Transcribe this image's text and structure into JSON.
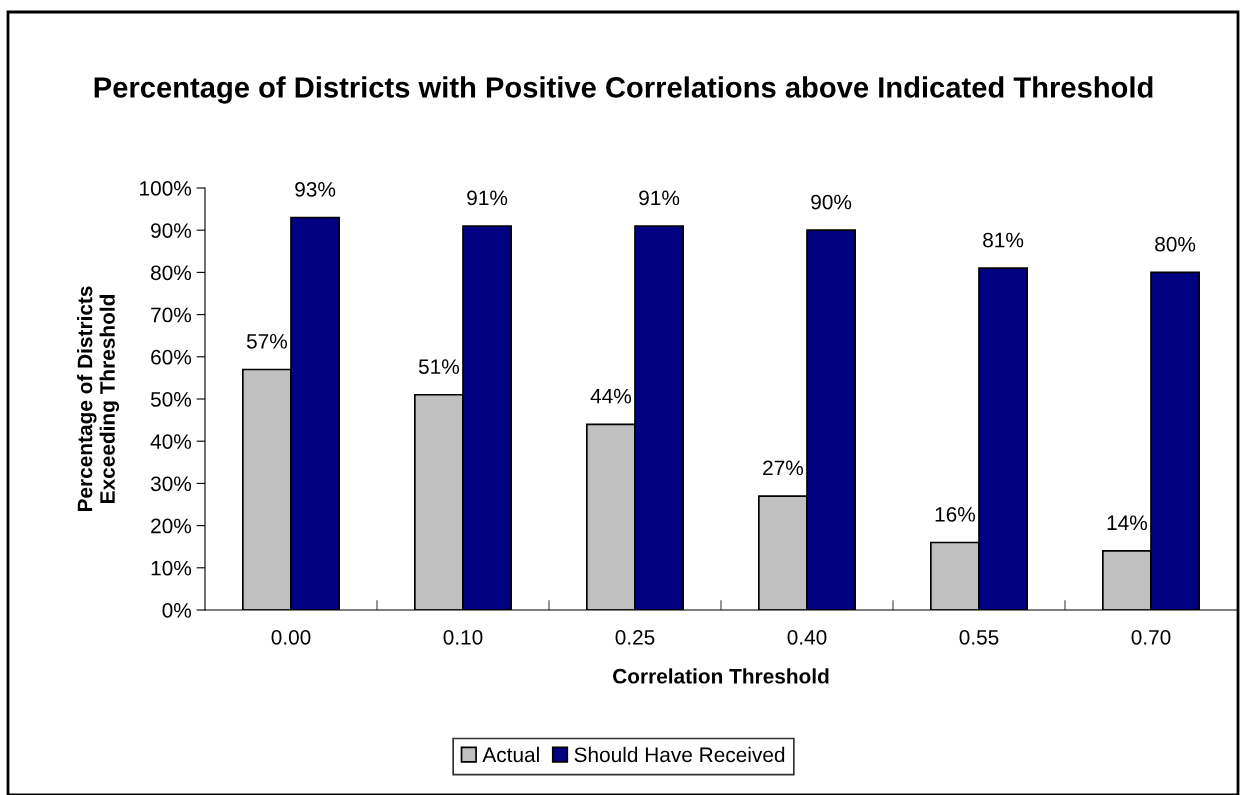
{
  "chart_data": {
    "type": "bar",
    "title": "Percentage of Districts with Positive Correlations above Indicated Threshold",
    "xlabel": "Correlation Threshold",
    "ylabel": "Percentage of Districts\nExceeding Threshold",
    "categories": [
      "0.00",
      "0.10",
      "0.25",
      "0.40",
      "0.55",
      "0.70"
    ],
    "series": [
      {
        "name": "Actual",
        "color": "#c0c0c0",
        "values": [
          57,
          51,
          44,
          27,
          16,
          14
        ],
        "value_labels": [
          "57%",
          "51%",
          "44%",
          "27%",
          "16%",
          "14%"
        ]
      },
      {
        "name": "Should Have Received",
        "color": "#000080",
        "values": [
          93,
          91,
          91,
          90,
          81,
          80
        ],
        "value_labels": [
          "93%",
          "91%",
          "91%",
          "90%",
          "81%",
          "80%"
        ]
      }
    ],
    "ylim": [
      0,
      100
    ],
    "yticks": [
      {
        "value": 0,
        "label": "0%"
      },
      {
        "value": 10,
        "label": "10%"
      },
      {
        "value": 20,
        "label": "20%"
      },
      {
        "value": 30,
        "label": "30%"
      },
      {
        "value": 40,
        "label": "40%"
      },
      {
        "value": 50,
        "label": "50%"
      },
      {
        "value": 60,
        "label": "60%"
      },
      {
        "value": 70,
        "label": "70%"
      },
      {
        "value": 80,
        "label": "80%"
      },
      {
        "value": 90,
        "label": "90%"
      },
      {
        "value": 100,
        "label": "100%"
      }
    ],
    "grid": false,
    "legend": "bottom"
  }
}
